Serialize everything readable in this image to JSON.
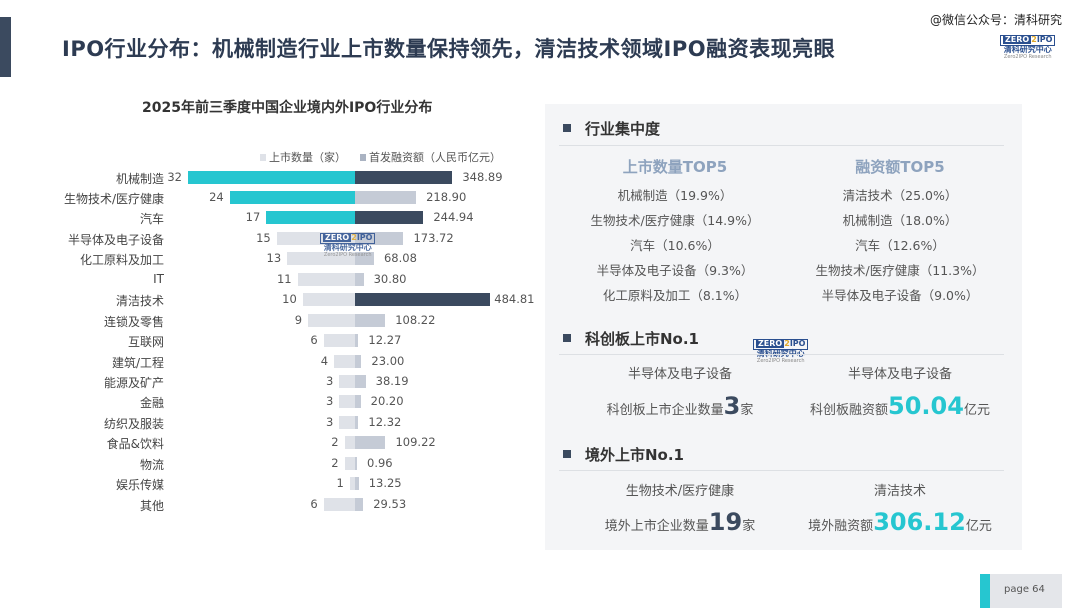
{
  "header": {
    "title": "IPO行业分布：机械制造行业上市数量保持领先，清洁技术领域IPO融资表现亮眼",
    "wechat": "@微信公众号：清科研究"
  },
  "logo": {
    "zero": "ZERO",
    "two": "2",
    "ipo": "IPO",
    "cn": "清科研究中心",
    "en": "Zero2IPO Research"
  },
  "colors": {
    "cyan": "#26c6d0",
    "navy": "#3b4a5f",
    "light_left": "#dfe2e8",
    "light_right": "#c5cbd6"
  },
  "chart_data": {
    "type": "bar",
    "title": "2025年前三季度中国企业境内外IPO行业分布",
    "legend": [
      "上市数量（家）",
      "首发融资额（人民币亿元）"
    ],
    "categories": [
      "机械制造",
      "生物技术/医疗健康",
      "汽车",
      "半导体及电子设备",
      "化工原料及加工",
      "IT",
      "清洁技术",
      "连锁及零售",
      "互联网",
      "建筑/工程",
      "能源及矿产",
      "金融",
      "纺织及服装",
      "食品&饮料",
      "物流",
      "娱乐传媒",
      "其他"
    ],
    "series": [
      {
        "name": "上市数量（家）",
        "values": [
          32,
          24,
          17,
          15,
          13,
          11,
          10,
          9,
          6,
          4,
          3,
          3,
          3,
          2,
          2,
          1,
          6
        ],
        "labels": [
          "32",
          "24",
          "17",
          "15",
          "13",
          "11",
          "10",
          "9",
          "6",
          "4",
          "3",
          "3",
          "3",
          "2",
          "2",
          "1",
          "6"
        ],
        "highlight": [
          true,
          true,
          true,
          false,
          false,
          false,
          false,
          false,
          false,
          false,
          false,
          false,
          false,
          false,
          false,
          false,
          false
        ]
      },
      {
        "name": "首发融资额（人民币亿元）",
        "values": [
          348.89,
          218.9,
          244.94,
          173.72,
          68.08,
          30.8,
          484.81,
          108.22,
          12.27,
          23.0,
          38.19,
          20.2,
          12.32,
          109.22,
          0.96,
          13.25,
          29.53
        ],
        "labels": [
          "348.89",
          "218.90",
          "244.94",
          "173.72",
          "68.08",
          "30.80",
          "484.81",
          "108.22",
          "12.27",
          "23.00",
          "38.19",
          "20.20",
          "12.32",
          "109.22",
          "0.96",
          "13.25",
          "29.53"
        ],
        "highlight": [
          true,
          false,
          true,
          false,
          false,
          false,
          true,
          false,
          false,
          false,
          false,
          false,
          false,
          false,
          false,
          false,
          false
        ]
      }
    ]
  },
  "panel": {
    "concentration": {
      "title": "行业集中度",
      "count_head": "上市数量TOP5",
      "count_items": [
        "机械制造（19.9%）",
        "生物技术/医疗健康（14.9%）",
        "汽车（10.6%）",
        "半导体及电子设备（9.3%）",
        "化工原料及加工（8.1%）"
      ],
      "fund_head": "融资额TOP5",
      "fund_items": [
        "清洁技术（25.0%）",
        "机械制造（18.0%）",
        "汽车（12.6%）",
        "生物技术/医疗健康（11.3%）",
        "半导体及电子设备（9.0%）"
      ]
    },
    "star": {
      "title": "科创板上市No.1",
      "left_ind": "半导体及电子设备",
      "left_pre": "科创板上市企业数量",
      "left_val": "3",
      "left_unit": "家",
      "right_ind": "半导体及电子设备",
      "right_pre": "科创板融资额",
      "right_val": "50.04",
      "right_unit": "亿元"
    },
    "overseas": {
      "title": "境外上市No.1",
      "left_ind": "生物技术/医疗健康",
      "left_pre": "境外上市企业数量",
      "left_val": "19",
      "left_unit": "家",
      "right_ind": "清洁技术",
      "right_pre": "境外融资额",
      "right_val": "306.12",
      "right_unit": "亿元"
    }
  },
  "footer": {
    "page": "page  64"
  }
}
